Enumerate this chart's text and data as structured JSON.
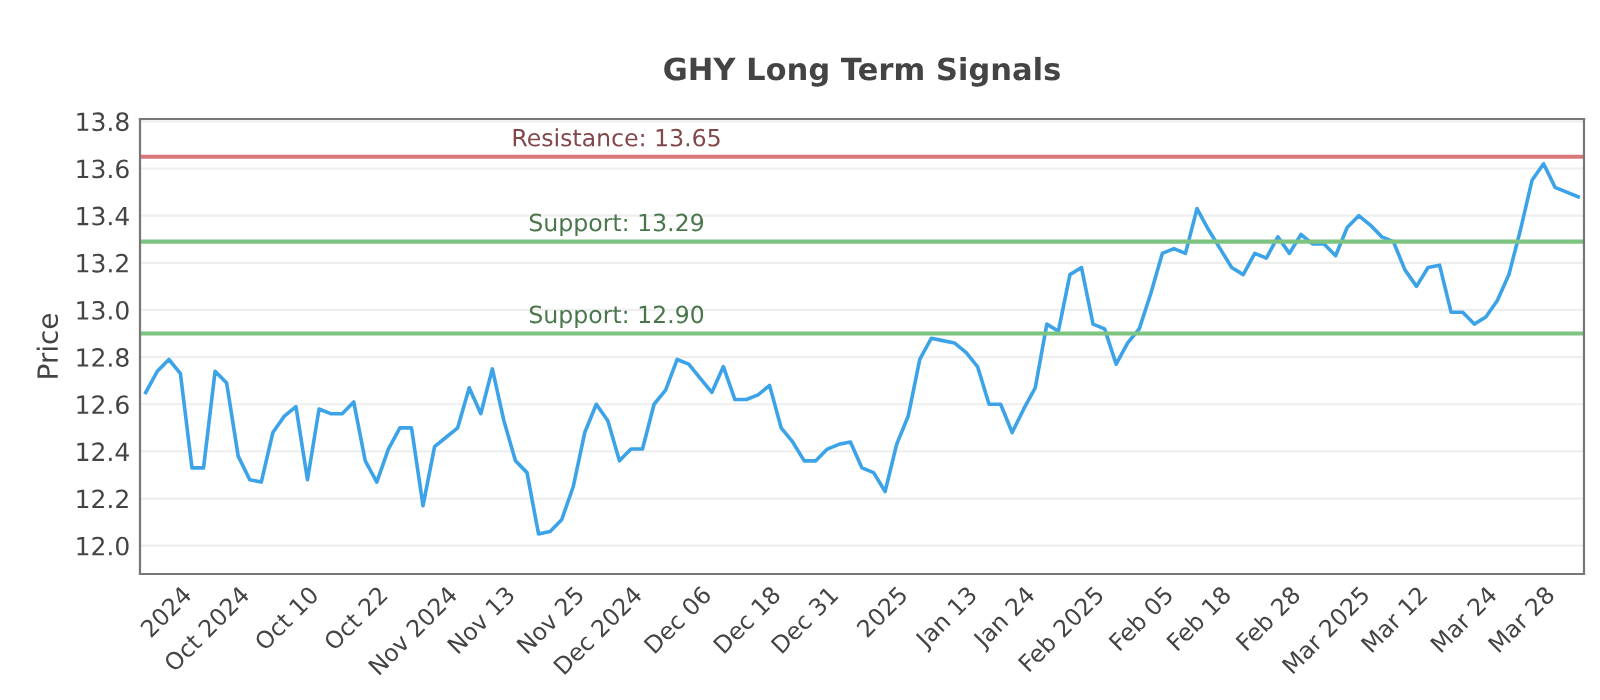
{
  "chart_data": {
    "type": "line",
    "title": "GHY Long Term Signals",
    "ylabel": "Price",
    "categories": [
      null,
      null,
      null,
      "2024",
      null,
      null,
      null,
      null,
      "Oct 2024",
      null,
      null,
      null,
      null,
      null,
      "Oct 10",
      null,
      null,
      null,
      null,
      null,
      "Oct 22",
      null,
      null,
      null,
      null,
      null,
      "Nov 2024",
      null,
      null,
      null,
      null,
      "Nov 13",
      null,
      null,
      null,
      null,
      null,
      "Nov 25",
      null,
      null,
      null,
      null,
      "Dec 2024",
      null,
      null,
      null,
      null,
      null,
      "Dec 06",
      null,
      null,
      null,
      null,
      null,
      "Dec 18",
      null,
      null,
      null,
      null,
      "Dec 31",
      null,
      null,
      null,
      null,
      null,
      "2025",
      null,
      null,
      null,
      null,
      null,
      "Jan 13",
      null,
      null,
      null,
      null,
      "Jan 24",
      null,
      null,
      null,
      null,
      null,
      "Feb 2025",
      null,
      null,
      null,
      null,
      null,
      "Feb 05",
      null,
      null,
      null,
      null,
      "Feb 18",
      null,
      null,
      null,
      null,
      null,
      "Feb 28",
      null,
      null,
      null,
      null,
      null,
      "Mar 2025",
      null,
      null,
      null,
      null,
      "Mar 12",
      null,
      null,
      null,
      null,
      null,
      "Mar 24",
      null,
      null,
      null,
      null,
      "Mar 28",
      null,
      null,
      null
    ],
    "series": [
      {
        "color": "#3ca3e8",
        "values": [
          12.65,
          12.74,
          12.79,
          12.73,
          12.33,
          12.33,
          12.74,
          12.69,
          12.38,
          12.28,
          12.27,
          12.48,
          12.55,
          12.59,
          12.28,
          12.58,
          12.56,
          12.56,
          12.61,
          12.36,
          12.27,
          12.41,
          12.5,
          12.5,
          12.17,
          12.42,
          12.46,
          12.5,
          12.67,
          12.56,
          12.75,
          12.53,
          12.36,
          12.31,
          12.05,
          12.06,
          12.11,
          12.25,
          12.48,
          12.6,
          12.53,
          12.36,
          12.41,
          12.41,
          12.6,
          12.66,
          12.79,
          12.77,
          12.71,
          12.65,
          12.76,
          12.62,
          12.62,
          12.64,
          12.68,
          12.5,
          12.44,
          12.36,
          12.36,
          12.41,
          12.43,
          12.44,
          12.33,
          12.31,
          12.23,
          12.43,
          12.55,
          12.79,
          12.88,
          12.87,
          12.86,
          12.82,
          12.76,
          12.6,
          12.6,
          12.48,
          12.58,
          12.67,
          12.94,
          12.91,
          13.15,
          13.18,
          12.94,
          12.92,
          12.77,
          12.86,
          12.92,
          13.07,
          13.24,
          13.26,
          13.24,
          13.43,
          13.34,
          13.26,
          13.18,
          13.15,
          13.24,
          13.22,
          13.31,
          13.24,
          13.32,
          13.28,
          13.28,
          13.23,
          13.35,
          13.4,
          13.36,
          13.31,
          13.29,
          13.17,
          13.1,
          13.18,
          13.19,
          12.99,
          12.99,
          12.94,
          12.97,
          13.04,
          13.15,
          13.34,
          13.55,
          13.62,
          13.52,
          13.5,
          13.48
        ]
      }
    ],
    "ylim": [
      11.88,
      13.81
    ],
    "yticks": [
      {
        "value": 12.0,
        "label": "12.0"
      },
      {
        "value": 12.2,
        "label": "12.2"
      },
      {
        "value": 12.4,
        "label": "12.4"
      },
      {
        "value": 12.6,
        "label": "12.6"
      },
      {
        "value": 12.8,
        "label": "12.8"
      },
      {
        "value": 13.0,
        "label": "13.0"
      },
      {
        "value": 13.2,
        "label": "13.2"
      },
      {
        "value": 13.4,
        "label": "13.4"
      },
      {
        "value": 13.6,
        "label": "13.6"
      },
      {
        "value": 13.8,
        "label": "13.8"
      }
    ],
    "ref_lines": [
      {
        "axis": "y",
        "value": 13.65,
        "label": "Resistance: 13.65",
        "color": "#d9777a"
      },
      {
        "axis": "y",
        "value": 13.29,
        "label": "Support: 13.29",
        "color": "#7cc47f"
      },
      {
        "axis": "y",
        "value": 12.9,
        "label": "Support: 12.90",
        "color": "#7cc47f"
      }
    ],
    "grid": "y",
    "legend": false,
    "marker": "none",
    "line_style": "solid"
  }
}
